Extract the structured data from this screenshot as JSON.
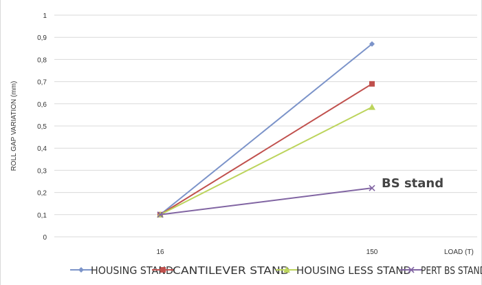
{
  "chart_data": {
    "type": "line",
    "title": "",
    "xlabel": "LOAD (T)",
    "ylabel": "ROLL GAP VARIATION (mm)",
    "categories": [
      "16",
      "150"
    ],
    "yticks": [
      "0",
      "0,1",
      "0,2",
      "0,3",
      "0,4",
      "0,5",
      "0,6",
      "0,7",
      "0,8",
      "0,9",
      "1"
    ],
    "ylim": [
      0,
      1
    ],
    "grid": true,
    "legend_position": "bottom",
    "series": [
      {
        "name": "HOUSING STAND",
        "values": [
          0.1,
          0.87
        ],
        "color": "#7b93c9",
        "marker": "diamond"
      },
      {
        "name": "CANTILEVER STAND",
        "values": [
          0.1,
          0.69
        ],
        "color": "#c0504d",
        "marker": "square"
      },
      {
        "name": "HOUSING LESS STAND",
        "values": [
          0.1,
          0.585
        ],
        "color": "#bcd45c",
        "marker": "triangle"
      },
      {
        "name": "PERT BS STAND",
        "values": [
          0.1,
          0.22
        ],
        "color": "#8064a2",
        "marker": "x"
      }
    ],
    "annotations": [
      {
        "text": "BS stand",
        "x": "150",
        "y": 0.23
      }
    ]
  }
}
